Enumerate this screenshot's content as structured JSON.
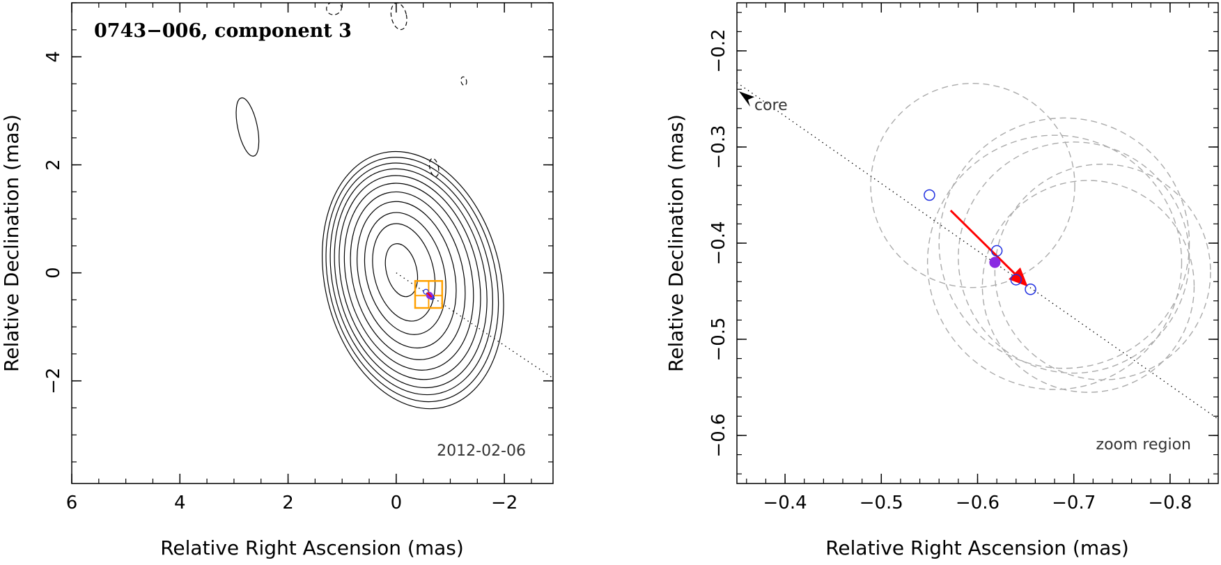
{
  "chart_data": [
    {
      "type": "contour",
      "title": "0743−006, component 3",
      "annotation": "2012-02-06",
      "xlabel": "Relative Right Ascension (mas)",
      "ylabel": "Relative Declination (mas)",
      "xlim": [
        6.0,
        -2.9
      ],
      "ylim": [
        -3.9,
        5.0
      ],
      "xticks": [
        6,
        4,
        2,
        0,
        -2
      ],
      "xtick_labels": [
        "6",
        "4",
        "2",
        "0",
        "−2"
      ],
      "yticks": [
        4,
        2,
        0,
        -2
      ],
      "ytick_labels": [
        "4",
        "2",
        "0",
        "−2"
      ],
      "grid": false,
      "contours": {
        "center": [
          -0.05,
          0.1
        ],
        "levels": [
          {
            "rx": 0.28,
            "ry": 0.5,
            "style": "solid"
          },
          {
            "rx": 0.55,
            "ry": 0.92,
            "style": "solid"
          },
          {
            "rx": 0.72,
            "ry": 1.15,
            "style": "solid"
          },
          {
            "rx": 0.88,
            "ry": 1.38,
            "style": "solid"
          },
          {
            "rx": 1.02,
            "ry": 1.58,
            "style": "solid"
          },
          {
            "rx": 1.15,
            "ry": 1.76,
            "style": "solid"
          },
          {
            "rx": 1.26,
            "ry": 1.92,
            "style": "solid"
          },
          {
            "rx": 1.36,
            "ry": 2.06,
            "style": "solid"
          },
          {
            "rx": 1.45,
            "ry": 2.18,
            "style": "solid"
          },
          {
            "rx": 1.54,
            "ry": 2.3,
            "style": "solid"
          },
          {
            "rx": 1.62,
            "ry": 2.42,
            "style": "solid"
          }
        ],
        "islands": [
          {
            "x": 2.75,
            "y": 2.7,
            "rx": 0.18,
            "ry": 0.55,
            "style": "solid"
          },
          {
            "x": -0.7,
            "y": 1.95,
            "rx": 0.08,
            "ry": 0.17,
            "style": "dashed"
          },
          {
            "x": -1.25,
            "y": 3.55,
            "rx": 0.05,
            "ry": 0.08,
            "style": "dashed"
          },
          {
            "x": 1.15,
            "y": 4.9,
            "rx": 0.14,
            "ry": 0.12,
            "style": "dashed"
          },
          {
            "x": -0.05,
            "y": 4.75,
            "rx": 0.14,
            "ry": 0.25,
            "style": "dashed"
          }
        ]
      },
      "zoom_box": {
        "x": [
          -0.35,
          -0.85
        ],
        "y": [
          -0.15,
          -0.65
        ]
      },
      "jet_axis": {
        "from": [
          0.0,
          0.0
        ],
        "to": [
          -2.9,
          -1.95
        ]
      },
      "component_position": [
        -0.6,
        -0.42
      ]
    },
    {
      "type": "scatter",
      "annotation": "zoom region",
      "core_label": "core",
      "xlabel": "Relative Right Ascension (mas)",
      "ylabel": "Relative Declination (mas)",
      "xlim": [
        -0.35,
        -0.85
      ],
      "ylim": [
        -0.65,
        -0.15
      ],
      "xticks": [
        -0.4,
        -0.5,
        -0.6,
        -0.7,
        -0.8
      ],
      "xtick_labels": [
        "−0.4",
        "−0.5",
        "−0.6",
        "−0.7",
        "−0.8"
      ],
      "yticks": [
        -0.2,
        -0.3,
        -0.4,
        -0.5,
        -0.6
      ],
      "ytick_labels": [
        "−0.2",
        "−0.3",
        "−0.4",
        "−0.5",
        "−0.6"
      ],
      "grid": false,
      "epochs": [
        {
          "x": -0.55,
          "y": -0.35
        },
        {
          "x": -0.62,
          "y": -0.408
        },
        {
          "x": -0.64,
          "y": -0.438
        },
        {
          "x": -0.655,
          "y": -0.448
        }
      ],
      "mean_position": {
        "x": -0.618,
        "y": -0.42
      },
      "error_circles": [
        {
          "x": -0.595,
          "y": -0.34,
          "r": 0.106
        },
        {
          "x": -0.68,
          "y": -0.42,
          "r": 0.132
        },
        {
          "x": -0.69,
          "y": -0.4,
          "r": 0.13
        },
        {
          "x": -0.7,
          "y": -0.415,
          "r": 0.12
        },
        {
          "x": -0.73,
          "y": -0.43,
          "r": 0.112
        },
        {
          "x": -0.715,
          "y": -0.445,
          "r": 0.11
        }
      ],
      "motion_arrow": {
        "from": [
          -0.572,
          -0.366
        ],
        "to": [
          -0.655,
          -0.448
        ]
      },
      "jet_axis": {
        "from": [
          -0.35,
          -0.233
        ],
        "to": [
          -0.85,
          -0.583
        ]
      },
      "core_arrow_tip": [
        -0.35,
        -0.245
      ],
      "colors": {
        "epoch": "#1f2fe0",
        "mean": "#8a2be2",
        "motion": "#ff0000",
        "zoom_box": "#ffa000",
        "circle": "#aaaaaa"
      }
    }
  ]
}
